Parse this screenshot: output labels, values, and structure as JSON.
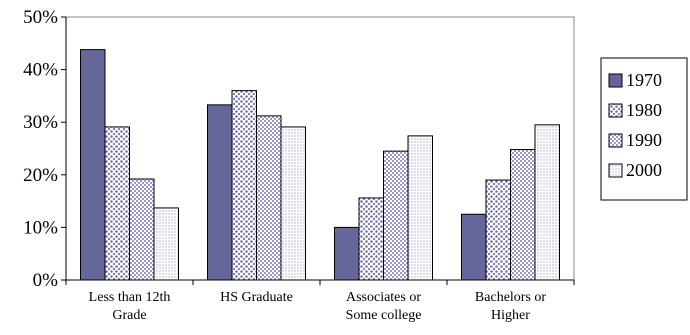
{
  "chart_data": {
    "type": "bar",
    "categories": [
      [
        "Less than 12th",
        "Grade"
      ],
      [
        "HS Graduate"
      ],
      [
        "Associates or",
        "Some college"
      ],
      [
        "Bachelors or",
        "Higher"
      ]
    ],
    "series": [
      {
        "name": "1970",
        "values": [
          43.8,
          33.3,
          10.0,
          12.5
        ]
      },
      {
        "name": "1980",
        "values": [
          29.1,
          36.0,
          15.6,
          19.0
        ]
      },
      {
        "name": "1990",
        "values": [
          19.2,
          31.2,
          24.5,
          24.8
        ]
      },
      {
        "name": "2000",
        "values": [
          13.7,
          29.1,
          27.4,
          29.5
        ]
      }
    ],
    "yticks": [
      "0%",
      "10%",
      "20%",
      "30%",
      "40%",
      "50%"
    ],
    "ylim": [
      0,
      50
    ],
    "grid": false,
    "legend": "right",
    "colors": {
      "1970": "#66669a",
      "1980": "#8c8cc4",
      "1990": "#a6a6d6",
      "2000": "#c8c8ea",
      "stroke": "#000000"
    }
  }
}
